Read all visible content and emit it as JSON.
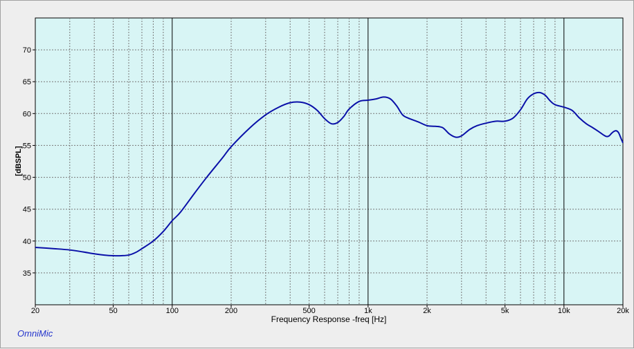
{
  "brand": "OmniMic",
  "chart_data": {
    "type": "line",
    "title": "",
    "xlabel": "Frequency Response -freq [Hz]",
    "ylabel": "[dBSPL]",
    "xscale": "log",
    "xlim": [
      20,
      20000
    ],
    "ylim": [
      30,
      75
    ],
    "x_ticks": [
      {
        "value": 20,
        "label": "20"
      },
      {
        "value": 50,
        "label": "50"
      },
      {
        "value": 100,
        "label": "100"
      },
      {
        "value": 200,
        "label": "200"
      },
      {
        "value": 500,
        "label": "500"
      },
      {
        "value": 1000,
        "label": "1k"
      },
      {
        "value": 2000,
        "label": "2k"
      },
      {
        "value": 5000,
        "label": "5k"
      },
      {
        "value": 10000,
        "label": "10k"
      },
      {
        "value": 20000,
        "label": "20k"
      }
    ],
    "y_ticks": [
      35,
      40,
      45,
      50,
      55,
      60,
      65,
      70
    ],
    "grid": true,
    "plot_background": "#d8f5f5",
    "line_color": "#0a10a8",
    "series": [
      {
        "values": [
          [
            20,
            39.0
          ],
          [
            25,
            38.8
          ],
          [
            30,
            38.6
          ],
          [
            35,
            38.3
          ],
          [
            40,
            38.0
          ],
          [
            45,
            37.8
          ],
          [
            50,
            37.7
          ],
          [
            55,
            37.7
          ],
          [
            60,
            37.8
          ],
          [
            65,
            38.2
          ],
          [
            70,
            38.8
          ],
          [
            80,
            40.0
          ],
          [
            90,
            41.5
          ],
          [
            100,
            43.2
          ],
          [
            110,
            44.5
          ],
          [
            130,
            47.5
          ],
          [
            150,
            50.0
          ],
          [
            180,
            53.0
          ],
          [
            200,
            54.8
          ],
          [
            250,
            57.8
          ],
          [
            300,
            59.8
          ],
          [
            350,
            61.0
          ],
          [
            400,
            61.7
          ],
          [
            450,
            61.8
          ],
          [
            500,
            61.4
          ],
          [
            550,
            60.5
          ],
          [
            600,
            59.2
          ],
          [
            650,
            58.4
          ],
          [
            700,
            58.6
          ],
          [
            750,
            59.5
          ],
          [
            800,
            60.7
          ],
          [
            900,
            61.9
          ],
          [
            1000,
            62.1
          ],
          [
            1100,
            62.3
          ],
          [
            1200,
            62.6
          ],
          [
            1300,
            62.3
          ],
          [
            1400,
            61.2
          ],
          [
            1500,
            59.8
          ],
          [
            1600,
            59.3
          ],
          [
            1800,
            58.7
          ],
          [
            2000,
            58.1
          ],
          [
            2200,
            58.0
          ],
          [
            2400,
            57.8
          ],
          [
            2600,
            56.8
          ],
          [
            2800,
            56.3
          ],
          [
            3000,
            56.5
          ],
          [
            3300,
            57.5
          ],
          [
            3600,
            58.1
          ],
          [
            4000,
            58.5
          ],
          [
            4500,
            58.8
          ],
          [
            5000,
            58.8
          ],
          [
            5500,
            59.3
          ],
          [
            6000,
            60.6
          ],
          [
            6500,
            62.3
          ],
          [
            7000,
            63.1
          ],
          [
            7500,
            63.3
          ],
          [
            8000,
            62.9
          ],
          [
            8500,
            62.0
          ],
          [
            9000,
            61.4
          ],
          [
            10000,
            61.0
          ],
          [
            11000,
            60.5
          ],
          [
            12000,
            59.3
          ],
          [
            13000,
            58.4
          ],
          [
            14000,
            57.8
          ],
          [
            15000,
            57.2
          ],
          [
            16000,
            56.6
          ],
          [
            16500,
            56.4
          ],
          [
            17000,
            56.5
          ],
          [
            17500,
            56.9
          ],
          [
            18000,
            57.2
          ],
          [
            18500,
            57.3
          ],
          [
            19000,
            57.0
          ],
          [
            19500,
            56.2
          ],
          [
            20000,
            55.4
          ]
        ]
      }
    ]
  }
}
